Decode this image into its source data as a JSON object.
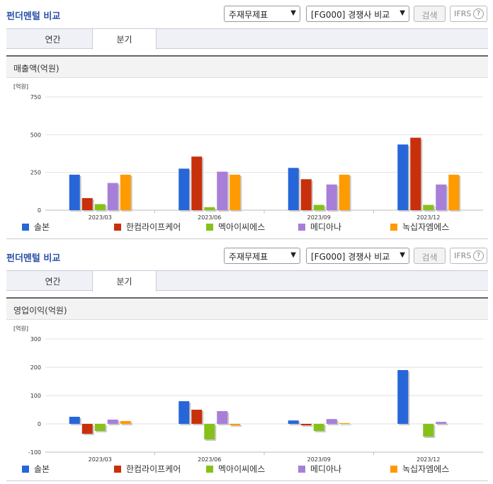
{
  "panels": [
    {
      "title": "펀더멘털 비교",
      "select1": "주재무제표",
      "select2": "[FG000] 경쟁사 비교",
      "search_label": "검색",
      "ifrs_label": "IFRS",
      "ifrs_help": "?",
      "tabs": [
        "연간",
        "분기"
      ],
      "chart_title": "매출액(억원)"
    },
    {
      "title": "펀더멘털 비교",
      "select1": "주재무제표",
      "select2": "[FG000] 경쟁사 비교",
      "search_label": "검색",
      "ifrs_label": "IFRS",
      "ifrs_help": "?",
      "tabs": [
        "연간",
        "분기"
      ],
      "chart_title": "영업이익(억원)"
    }
  ],
  "colors": {
    "솔본": "#2666d9",
    "한컴라이프케어": "#c8300c",
    "멕아이씨에스": "#86c11b",
    "메디아나": "#a77fd8",
    "녹십자엠에스": "#ff9a00"
  },
  "chart_data": [
    {
      "type": "bar",
      "unit_label": "[억원]",
      "categories": [
        "2023/03",
        "2023/06",
        "2023/09",
        "2023/12"
      ],
      "ylim": [
        0,
        750
      ],
      "yticks": [
        0,
        250,
        500,
        750
      ],
      "legend_position": "bottom",
      "grid": true,
      "series": [
        {
          "name": "솔본",
          "values": [
            235,
            275,
            280,
            435
          ]
        },
        {
          "name": "한컴라이프케어",
          "values": [
            80,
            355,
            205,
            480
          ]
        },
        {
          "name": "멕아이씨에스",
          "values": [
            40,
            20,
            35,
            35
          ]
        },
        {
          "name": "메디아나",
          "values": [
            180,
            255,
            170,
            170
          ]
        },
        {
          "name": "녹십자엠에스",
          "values": [
            235,
            235,
            235,
            235
          ]
        }
      ]
    },
    {
      "type": "bar",
      "unit_label": "[억원]",
      "categories": [
        "2023/03",
        "2023/06",
        "2023/09",
        "2023/12"
      ],
      "ylim": [
        -100,
        300
      ],
      "yticks": [
        -100,
        0,
        100,
        200,
        300
      ],
      "legend_position": "bottom",
      "grid": true,
      "series": [
        {
          "name": "솔본",
          "values": [
            25,
            80,
            12,
            190
          ]
        },
        {
          "name": "한컴라이프케어",
          "values": [
            -35,
            50,
            -5,
            0
          ]
        },
        {
          "name": "멕아이씨에스",
          "values": [
            -25,
            -55,
            -25,
            -45
          ]
        },
        {
          "name": "메디아나",
          "values": [
            15,
            45,
            17,
            7
          ]
        },
        {
          "name": "녹십자엠에스",
          "values": [
            10,
            -5,
            3,
            0
          ]
        }
      ]
    }
  ]
}
